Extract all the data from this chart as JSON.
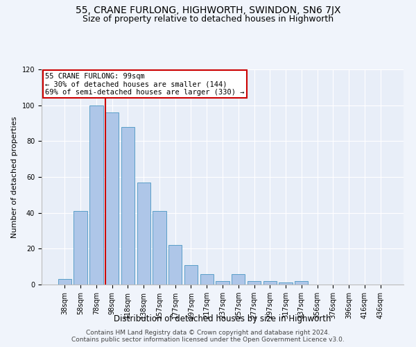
{
  "title": "55, CRANE FURLONG, HIGHWORTH, SWINDON, SN6 7JX",
  "subtitle": "Size of property relative to detached houses in Highworth",
  "xlabel": "Distribution of detached houses by size in Highworth",
  "ylabel": "Number of detached properties",
  "categories": [
    "38sqm",
    "58sqm",
    "78sqm",
    "98sqm",
    "118sqm",
    "138sqm",
    "157sqm",
    "177sqm",
    "197sqm",
    "217sqm",
    "237sqm",
    "257sqm",
    "277sqm",
    "297sqm",
    "317sqm",
    "337sqm",
    "356sqm",
    "376sqm",
    "396sqm",
    "416sqm",
    "436sqm"
  ],
  "values": [
    3,
    41,
    100,
    96,
    88,
    57,
    41,
    22,
    11,
    6,
    2,
    6,
    2,
    2,
    1,
    2,
    0,
    0,
    0,
    0,
    0
  ],
  "bar_color": "#aec6e8",
  "bar_edge_color": "#5a9fc8",
  "annotation_line1": "55 CRANE FURLONG: 99sqm",
  "annotation_line2": "← 30% of detached houses are smaller (144)",
  "annotation_line3": "69% of semi-detached houses are larger (330) →",
  "annotation_box_color": "#ffffff",
  "annotation_box_edge": "#cc0000",
  "vline_color": "#cc0000",
  "ylim": [
    0,
    120
  ],
  "footnote1": "Contains HM Land Registry data © Crown copyright and database right 2024.",
  "footnote2": "Contains public sector information licensed under the Open Government Licence v3.0.",
  "bg_color": "#f0f4fb",
  "plot_bg_color": "#e8eef8",
  "grid_color": "#ffffff",
  "title_fontsize": 10,
  "subtitle_fontsize": 9,
  "ylabel_fontsize": 8,
  "xlabel_fontsize": 8.5,
  "tick_fontsize": 7,
  "annot_fontsize": 7.5,
  "footnote_fontsize": 6.5
}
